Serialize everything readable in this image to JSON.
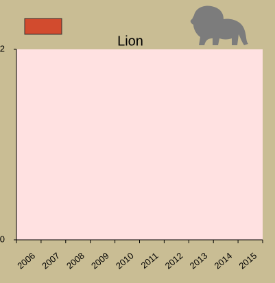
{
  "chart_data": {
    "type": "bar",
    "title": "Lion",
    "categories": [
      "2006",
      "2007",
      "2008",
      "2009",
      "2010",
      "2011",
      "2012",
      "2013",
      "2014",
      "2015"
    ],
    "series": [
      {
        "color": "#d24b2e",
        "values": [
          null,
          null,
          null,
          null,
          null,
          null,
          null,
          null,
          null,
          null
        ]
      }
    ],
    "ylim": [
      0,
      2
    ],
    "yticks": [
      0,
      2
    ],
    "plot_background": "#ffe1e1"
  }
}
